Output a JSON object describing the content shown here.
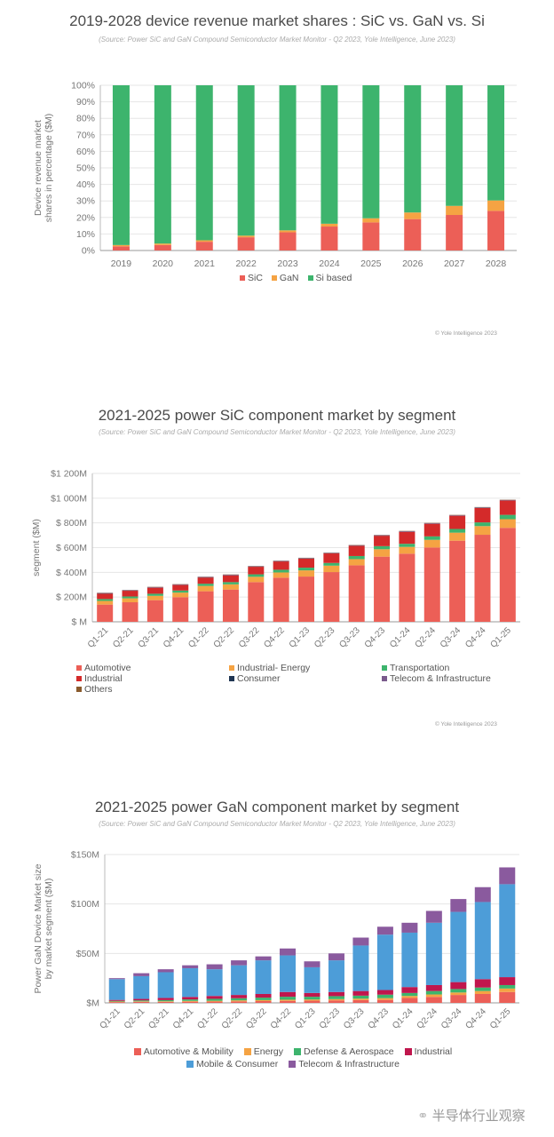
{
  "chart_data": [
    {
      "type": "bar",
      "stacked": true,
      "title": "2019-2028 device revenue market shares : SiC vs. GaN vs. Si",
      "subtitle": "(Source: Power SiC and GaN Compound Semiconductor Market Monitor - Q2 2023, Yole Intelligence, June 2023)",
      "ylabel": "Device revenue market shares  in percentage ($M)",
      "xlabel": "",
      "ylim": [
        0,
        100
      ],
      "yticks": [
        "0%",
        "10%",
        "20%",
        "30%",
        "40%",
        "50%",
        "60%",
        "70%",
        "80%",
        "90%",
        "100%"
      ],
      "categories": [
        "2019",
        "2020",
        "2021",
        "2022",
        "2023",
        "2024",
        "2025",
        "2026",
        "2027",
        "2028"
      ],
      "series": [
        {
          "name": "SiC",
          "color": "#ec5f57",
          "values": [
            2.5,
            3.3,
            5.3,
            8,
            11,
            14.5,
            17,
            19,
            21.5,
            24
          ]
        },
        {
          "name": "GaN",
          "color": "#f5a343",
          "values": [
            0.8,
            0.9,
            0.9,
            1,
            1.2,
            1.7,
            2.5,
            4,
            5.5,
            6.3
          ]
        },
        {
          "name": "Si based",
          "color": "#3db46d",
          "values": [
            96.7,
            95.8,
            93.8,
            91,
            87.8,
            83.8,
            80.5,
            77,
            73,
            69.7
          ]
        }
      ],
      "legend": "bottom",
      "grid": true,
      "copyright": "© Yole Intelligence 2023"
    },
    {
      "type": "bar",
      "stacked": true,
      "title": "2021-2025 power SiC component market by segment",
      "subtitle": "(Source: Power SiC and GaN Compound Semiconductor Market Monitor - Q2 2023, Yole Intelligence, June 2023)",
      "ylabel": "segment ($M)",
      "xlabel": "",
      "ylim": [
        0,
        1200
      ],
      "yticks": [
        "$ M",
        "$ 200M",
        "$ 400M",
        "$ 600M",
        "$ 800M",
        "$1 000M",
        "$1 200M"
      ],
      "categories": [
        "Q1-21",
        "Q2-21",
        "Q3-21",
        "Q4-21",
        "Q1-22",
        "Q2-22",
        "Q3-22",
        "Q4-22",
        "Q1-23",
        "Q2-23",
        "Q3-23",
        "Q4-23",
        "Q1-24",
        "Q2-24",
        "Q3-24",
        "Q4-24",
        "Q1-25"
      ],
      "series": [
        {
          "name": "Automotive",
          "color": "#ec5f57",
          "values": [
            139,
            158,
            175,
            199,
            247,
            261,
            321,
            357,
            366,
            402,
            457,
            527,
            551,
            601,
            656,
            704,
            760
          ]
        },
        {
          "name": "Industrial- Energy",
          "color": "#f5a343",
          "values": [
            30,
            32,
            35,
            37,
            43,
            42,
            43,
            42,
            50,
            52,
            50,
            60,
            55,
            62,
            65,
            70,
            70
          ]
        },
        {
          "name": "Transportation",
          "color": "#3db46d",
          "values": [
            15,
            15,
            17,
            17,
            18,
            18,
            20,
            22,
            22,
            22,
            25,
            25,
            25,
            28,
            30,
            30,
            35
          ]
        },
        {
          "name": "Industrial",
          "color": "#d42a2a",
          "values": [
            44,
            46,
            49,
            45,
            50,
            55,
            61,
            67,
            73,
            77,
            83,
            84,
            97,
            102,
            107,
            117,
            116
          ]
        },
        {
          "name": "Consumer",
          "color": "#1f3552",
          "values": [
            2,
            2,
            2,
            2,
            2,
            2,
            2,
            2,
            2,
            2,
            2,
            2,
            2,
            2,
            2,
            2,
            2
          ]
        },
        {
          "name": "Telecom & Infrastructure",
          "color": "#7a5a8c",
          "values": [
            3,
            3,
            3,
            3,
            3,
            3,
            3,
            3,
            3,
            3,
            3,
            3,
            3,
            3,
            3,
            3,
            3
          ]
        },
        {
          "name": "Others",
          "color": "#8a5a2c",
          "values": [
            2,
            2,
            2,
            2,
            2,
            2,
            2,
            2,
            2,
            2,
            2,
            2,
            2,
            2,
            2,
            2,
            2
          ]
        }
      ],
      "legend": "bottom",
      "grid": true,
      "copyright": "© Yole Intelligence 2023"
    },
    {
      "type": "bar",
      "stacked": true,
      "title": "2021-2025 power GaN component market by segment",
      "subtitle": "(Source: Power SiC and GaN Compound Semiconductor Market Monitor - Q2 2023, Yole Intelligence, June 2023)",
      "ylabel": "Power GaN Device Market size by market segment ($M)",
      "ylabel_lines": [
        "Power GaN Device Market size",
        "by market segment ($M)"
      ],
      "xlabel": "",
      "ylim": [
        0,
        150
      ],
      "yticks": [
        "$M",
        "$50M",
        "$100M",
        "$150M"
      ],
      "categories": [
        "Q1-21",
        "Q2-21",
        "Q3-21",
        "Q4-21",
        "Q1-22",
        "Q2-22",
        "Q3-22",
        "Q4-22",
        "Q1-23",
        "Q2-23",
        "Q3-23",
        "Q4-23",
        "Q1-24",
        "Q2-24",
        "Q3-24",
        "Q4-24",
        "Q1-25"
      ],
      "series": [
        {
          "name": "Automotive & Mobility",
          "color": "#ec5f57",
          "values": [
            0.8,
            1,
            1,
            1.2,
            1.3,
            1.5,
            1.8,
            2,
            2.2,
            2.5,
            2.8,
            3,
            5,
            6,
            8,
            9,
            11
          ]
        },
        {
          "name": "Energy",
          "color": "#f5a343",
          "values": [
            0.5,
            0.5,
            0.6,
            0.8,
            0.8,
            1,
            1,
            1.2,
            1.2,
            1.3,
            1.5,
            1.8,
            2,
            2.5,
            2.5,
            3,
            3.5
          ]
        },
        {
          "name": "Defense & Aerospace",
          "color": "#3db46d",
          "values": [
            0.7,
            1,
            1.2,
            1.5,
            2,
            2.2,
            2.5,
            3,
            2.8,
            3,
            3,
            3.5,
            3,
            3.5,
            3.5,
            3.5,
            3.5
          ]
        },
        {
          "name": "Industrial",
          "color": "#c0164d",
          "values": [
            1,
            1.5,
            2.2,
            2.5,
            2.9,
            3.3,
            3.7,
            4.8,
            3.8,
            4.2,
            4.7,
            4.7,
            6,
            6,
            7,
            8.5,
            8
          ]
        },
        {
          "name": "Mobile & Consumer",
          "color": "#4d9dd8",
          "values": [
            21,
            23,
            26,
            29,
            27,
            30,
            34,
            37,
            26,
            32,
            46,
            56,
            55,
            63,
            71,
            78,
            94
          ]
        },
        {
          "name": "Telecom & Infrastructure",
          "color": "#8a5a9e",
          "values": [
            1,
            3,
            3,
            3,
            5,
            5,
            4,
            7,
            6,
            7,
            8,
            8,
            10,
            12,
            13,
            15,
            17
          ]
        }
      ],
      "legend": "bottom",
      "grid": true
    }
  ],
  "watermark": "半导体行业观察"
}
